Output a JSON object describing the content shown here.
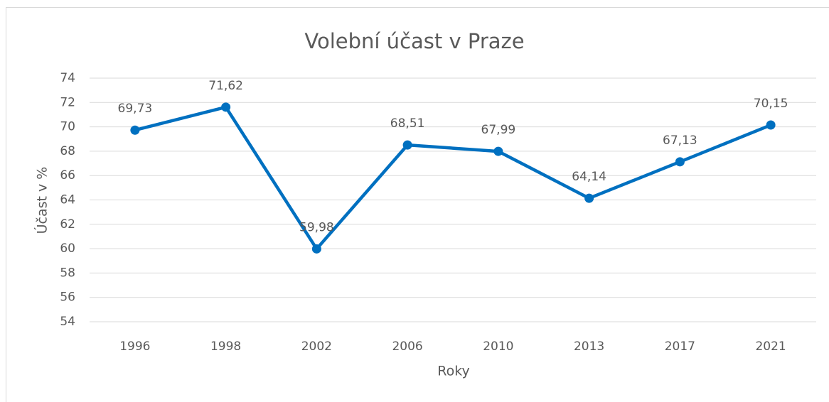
{
  "chart_data": {
    "type": "line",
    "title": "Volební účast v Praze",
    "x_label": "Roky",
    "y_label": "Účast v %",
    "categories": [
      "1996",
      "1998",
      "2002",
      "2006",
      "2010",
      "2013",
      "2017",
      "2021"
    ],
    "series": [
      {
        "name": "Účast",
        "color": "#0070c0",
        "values": [
          69.73,
          71.62,
          59.98,
          68.51,
          67.99,
          64.14,
          67.13,
          70.15
        ],
        "value_labels": [
          "69,73",
          "71,62",
          "59,98",
          "68,51",
          "67,99",
          "64,14",
          "67,13",
          "70,15"
        ]
      }
    ],
    "ylim": [
      54,
      74
    ],
    "yticks": [
      54,
      56,
      58,
      60,
      62,
      64,
      66,
      68,
      70,
      72,
      74
    ],
    "grid": true
  }
}
